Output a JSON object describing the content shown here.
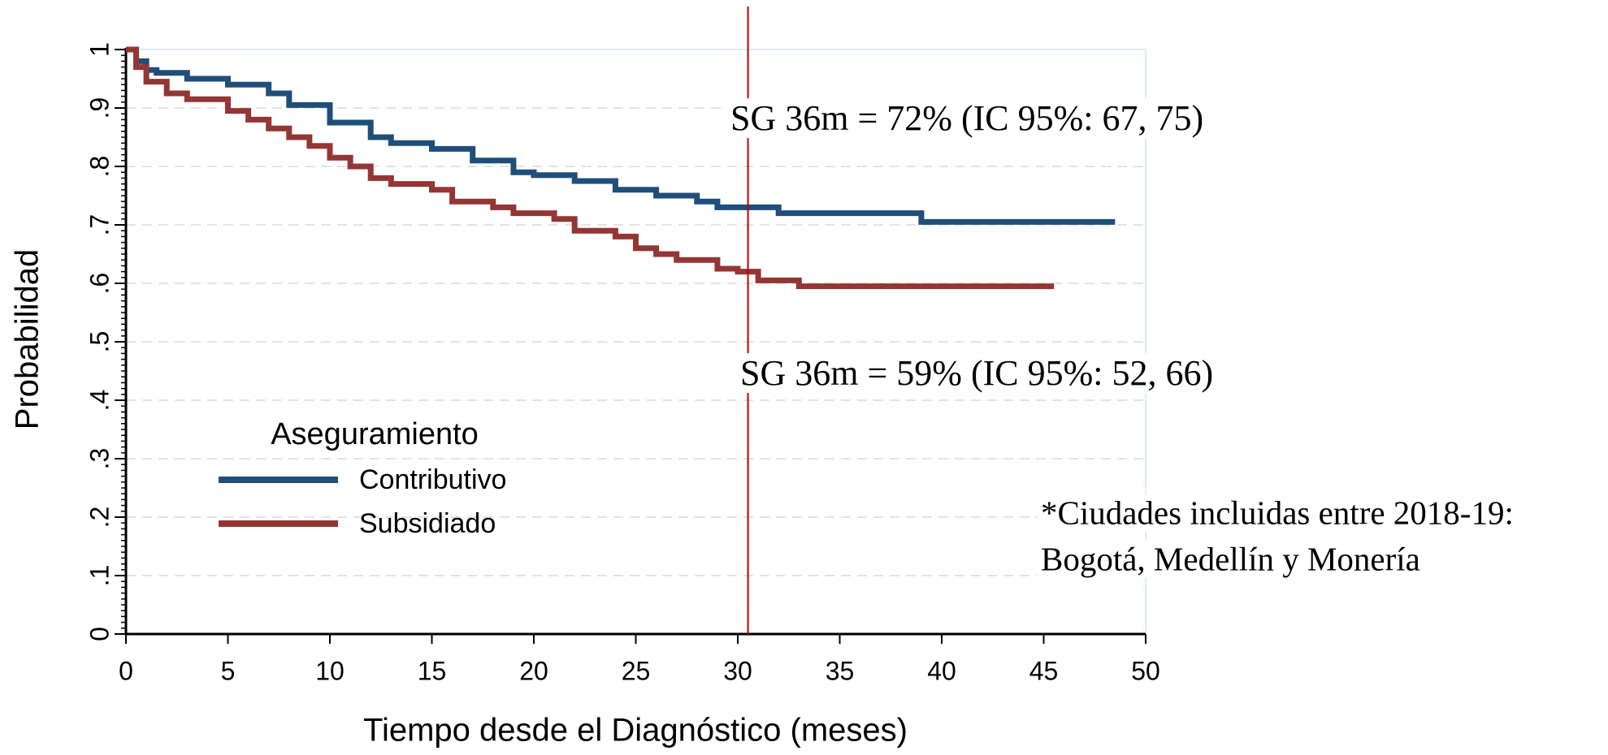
{
  "chart_data": {
    "type": "line",
    "step": true,
    "xlabel": "Tiempo desde el Diagnóstico (meses)",
    "ylabel": "Probabilidad",
    "xlim": [
      0,
      50
    ],
    "xticks": [
      0,
      5,
      10,
      15,
      20,
      25,
      30,
      35,
      40,
      45,
      50
    ],
    "ylim": [
      0,
      1
    ],
    "yticks": [
      0,
      {
        "value": 0.1,
        "label": ".1"
      },
      {
        "value": 0.2,
        "label": ".2"
      },
      {
        "value": 0.3,
        "label": ".3"
      },
      {
        "value": 0.4,
        "label": ".4"
      },
      {
        "value": 0.5,
        "label": ".5"
      },
      {
        "value": 0.6,
        "label": ".6"
      },
      {
        "value": 0.7,
        "label": ".7"
      },
      {
        "value": 0.8,
        "label": ".8"
      },
      {
        "value": 0.9,
        "label": ".9"
      },
      1
    ],
    "grid": true,
    "reference_x": 30.5,
    "reference_color": "#c00000",
    "legend_title": "Aseguramiento",
    "annotations": [
      "SG 36m = 72% (IC 95%: 67, 75)",
      "SG 36m = 59% (IC 95%: 52, 66)"
    ],
    "note": [
      "*Ciudades incluidas entre 2018-19:",
      "Bogotá, Medellín y Monería"
    ],
    "series": [
      {
        "name": "Contributivo",
        "color": "#1f4e79",
        "x": [
          0,
          0.5,
          1,
          1.5,
          3,
          5,
          7,
          8,
          10,
          12,
          13,
          15,
          17,
          19,
          20,
          22,
          24,
          26,
          28,
          29,
          32,
          39,
          48.5
        ],
        "values": [
          1,
          0.98,
          0.965,
          0.96,
          0.95,
          0.94,
          0.925,
          0.905,
          0.875,
          0.85,
          0.84,
          0.83,
          0.81,
          0.79,
          0.785,
          0.775,
          0.76,
          0.75,
          0.74,
          0.73,
          0.72,
          0.705,
          0.705
        ]
      },
      {
        "name": "Subsidiado",
        "color": "#943634",
        "x": [
          0,
          0.5,
          1,
          2,
          3,
          5,
          6,
          7,
          8,
          9,
          10,
          11,
          12,
          13,
          15,
          16,
          18,
          19,
          21,
          22,
          24,
          25,
          26,
          27,
          29,
          30,
          31,
          33,
          45.5
        ],
        "values": [
          1,
          0.97,
          0.945,
          0.925,
          0.915,
          0.895,
          0.88,
          0.865,
          0.85,
          0.835,
          0.815,
          0.8,
          0.78,
          0.77,
          0.76,
          0.74,
          0.73,
          0.72,
          0.71,
          0.69,
          0.68,
          0.66,
          0.65,
          0.64,
          0.625,
          0.62,
          0.605,
          0.595,
          0.595
        ]
      }
    ]
  }
}
